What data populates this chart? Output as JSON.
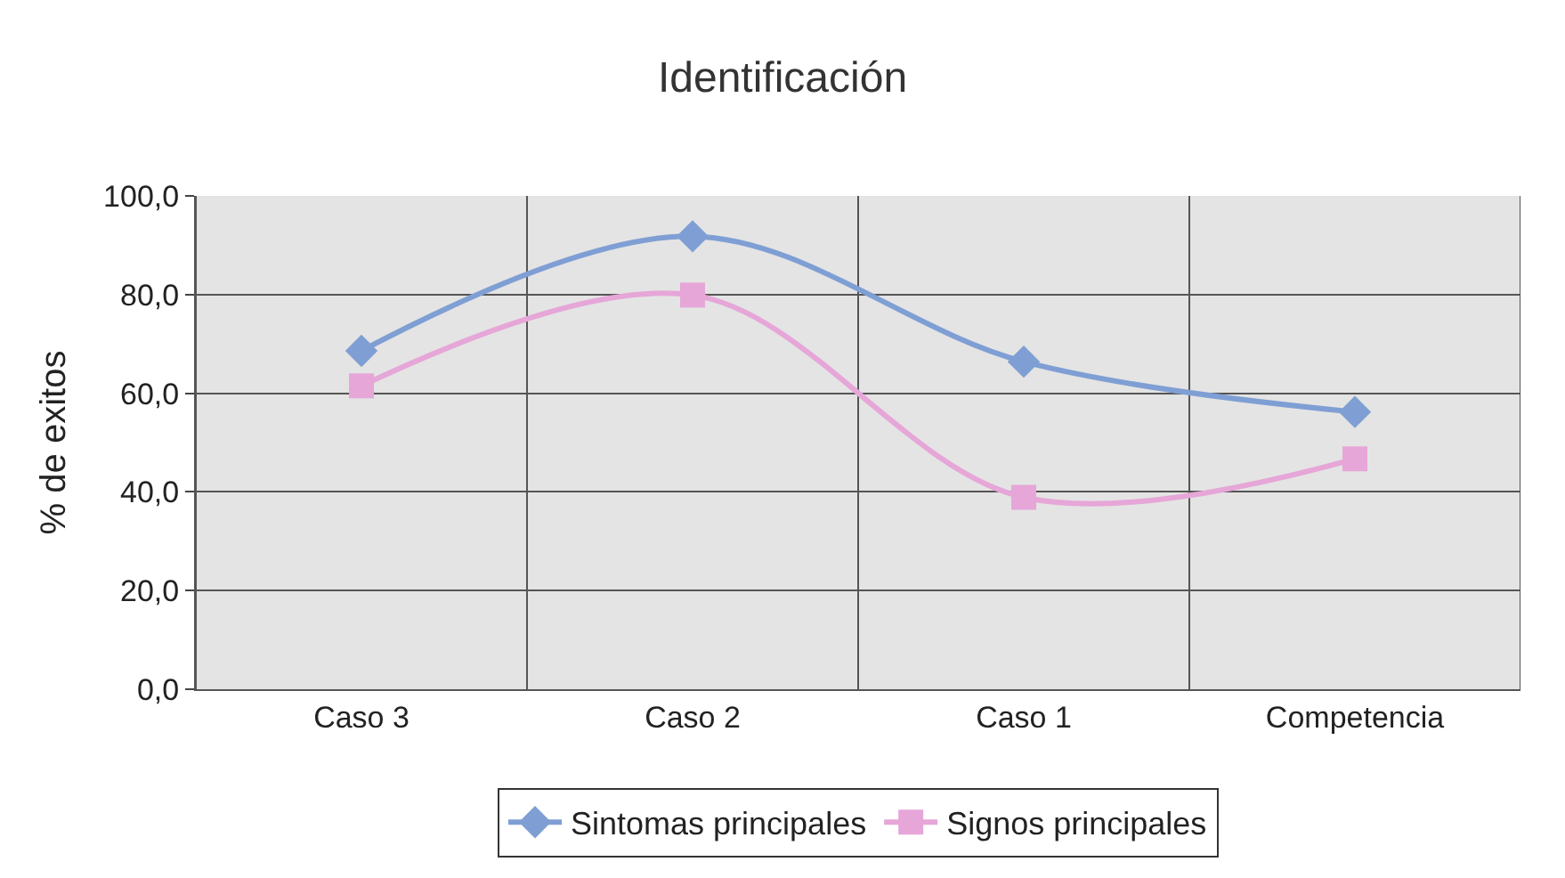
{
  "chart_data": {
    "type": "line",
    "title": "Identificación",
    "ylabel": "% de exitos",
    "categories": [
      "Caso 3",
      "Caso 2",
      "Caso 1",
      "Competencia"
    ],
    "series": [
      {
        "name": "Sintomas principales",
        "color": "#7f9fd4",
        "marker": "diamond",
        "values": [
          68.6,
          91.8,
          66.4,
          56.2
        ]
      },
      {
        "name": "Signos principales",
        "color": "#e6a6d8",
        "marker": "square",
        "values": [
          61.5,
          79.9,
          38.9,
          46.7
        ]
      }
    ],
    "ylim": [
      0,
      100
    ],
    "yticks": [
      {
        "value": 0,
        "label": "0,0"
      },
      {
        "value": 20,
        "label": "20,0"
      },
      {
        "value": 40,
        "label": "40,0"
      },
      {
        "value": 60,
        "label": "60,0"
      },
      {
        "value": 80,
        "label": "80,0"
      },
      {
        "value": 100,
        "label": "100,0"
      }
    ],
    "grid": true,
    "legend": "bottom"
  }
}
